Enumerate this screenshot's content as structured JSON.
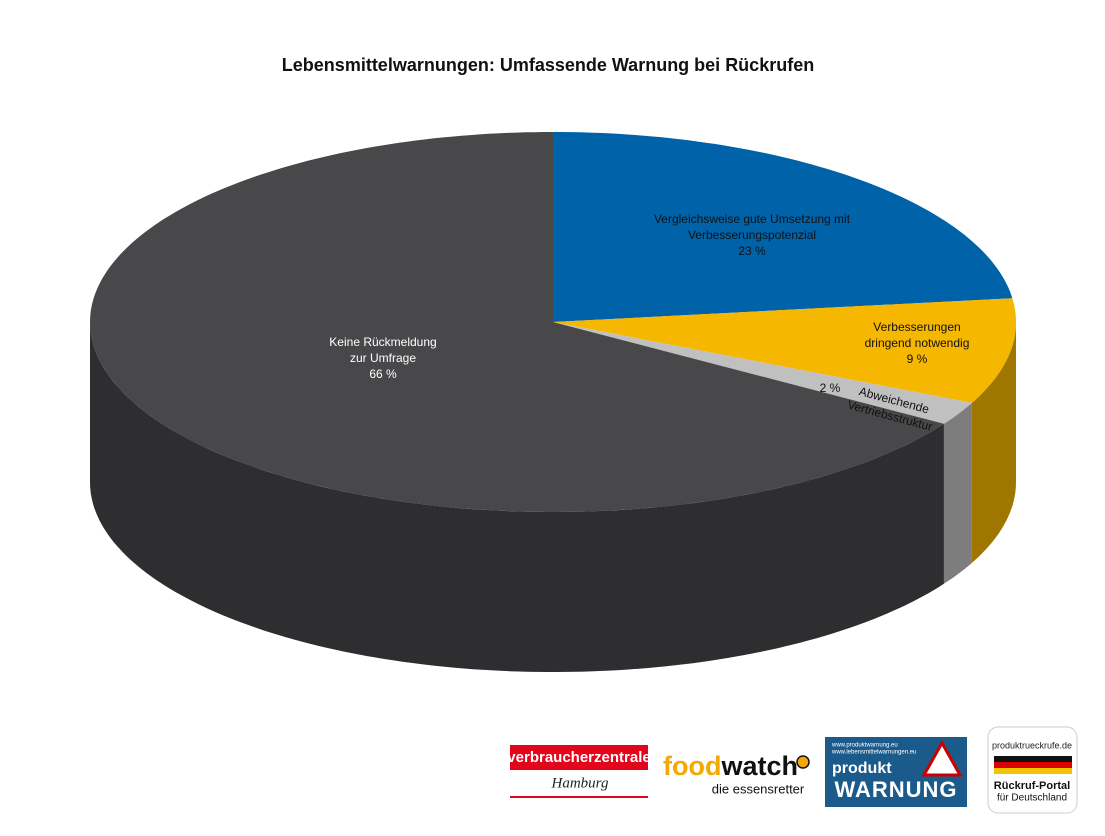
{
  "chart_data": {
    "type": "pie3d",
    "title": "Lebensmittelwarnungen: Umfassende Warnung  bei Rückrufen",
    "categories": [
      "Vergleichsweise gute Umsetzung mit\nVerbesserungspotenzial",
      "Verbesserungen\ndringend  notwendig",
      "Abweichende\nVertriebsstruktur",
      "Keine Rückmeldung\nzur Umfrage"
    ],
    "values": [
      23,
      9,
      2,
      66
    ],
    "value_labels": [
      "23 %",
      "9 %",
      "2 %",
      "66 %"
    ],
    "colors": [
      "#0062a9",
      "#f5b700",
      "#c0c0c0",
      "#48484a"
    ]
  },
  "logos": {
    "vz": {
      "name": "verbraucherzentrale",
      "city": "Hamburg"
    },
    "foodwatch": {
      "part1": "food",
      "part2": "watch",
      "slogan": "die essensretter"
    },
    "pw": {
      "url1": "www.produktwarnung.eu",
      "url2": "www.lebensmittelwarnungen.eu",
      "word1": "produkt",
      "word2": "WARNUNG"
    },
    "pr": {
      "url": "produktrueckrufe.de",
      "line1": "Rückruf-Portal",
      "line2": "für Deutschland"
    }
  }
}
